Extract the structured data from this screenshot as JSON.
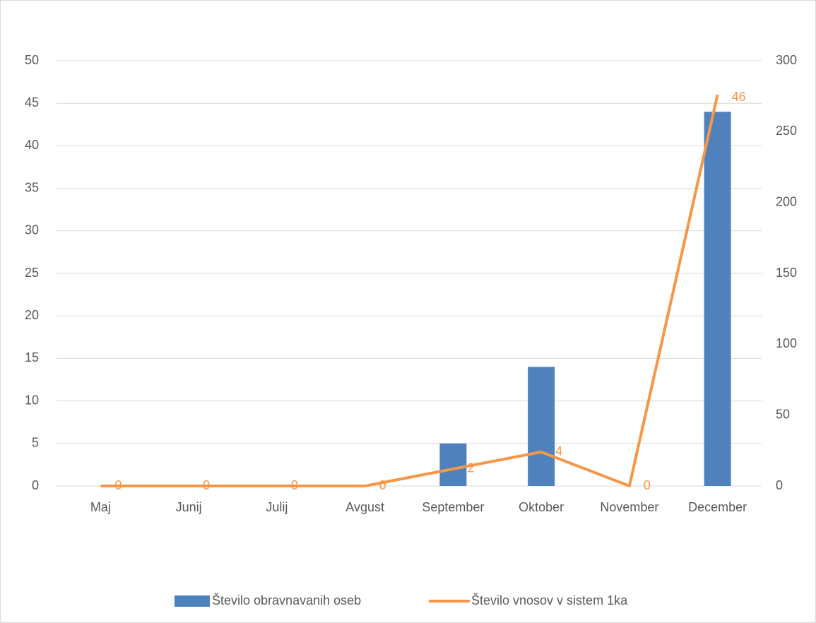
{
  "chart_data": {
    "type": "combo",
    "categories": [
      "Maj",
      "Junij",
      "Julij",
      "Avgust",
      "September",
      "Oktober",
      "November",
      "December"
    ],
    "series": [
      {
        "name": "Število obravnavanih oseb",
        "type": "bar",
        "color": "#4f81bd",
        "values": [
          0,
          0,
          0,
          0,
          5,
          14,
          0,
          44
        ]
      },
      {
        "name": "Število vnosov v sistem 1ka",
        "type": "line",
        "color": "#f79646",
        "values": [
          0,
          0,
          0,
          0,
          2,
          4,
          0,
          46
        ],
        "data_labels": true
      }
    ],
    "ylim": [
      0,
      50
    ],
    "yticks": [
      0,
      5,
      10,
      15,
      20,
      25,
      30,
      35,
      40,
      45,
      50
    ],
    "y2lim": [
      0,
      300
    ],
    "y2ticks": [
      0,
      50,
      100,
      150,
      200,
      250,
      300
    ],
    "grid": true,
    "legend": "bottom"
  }
}
